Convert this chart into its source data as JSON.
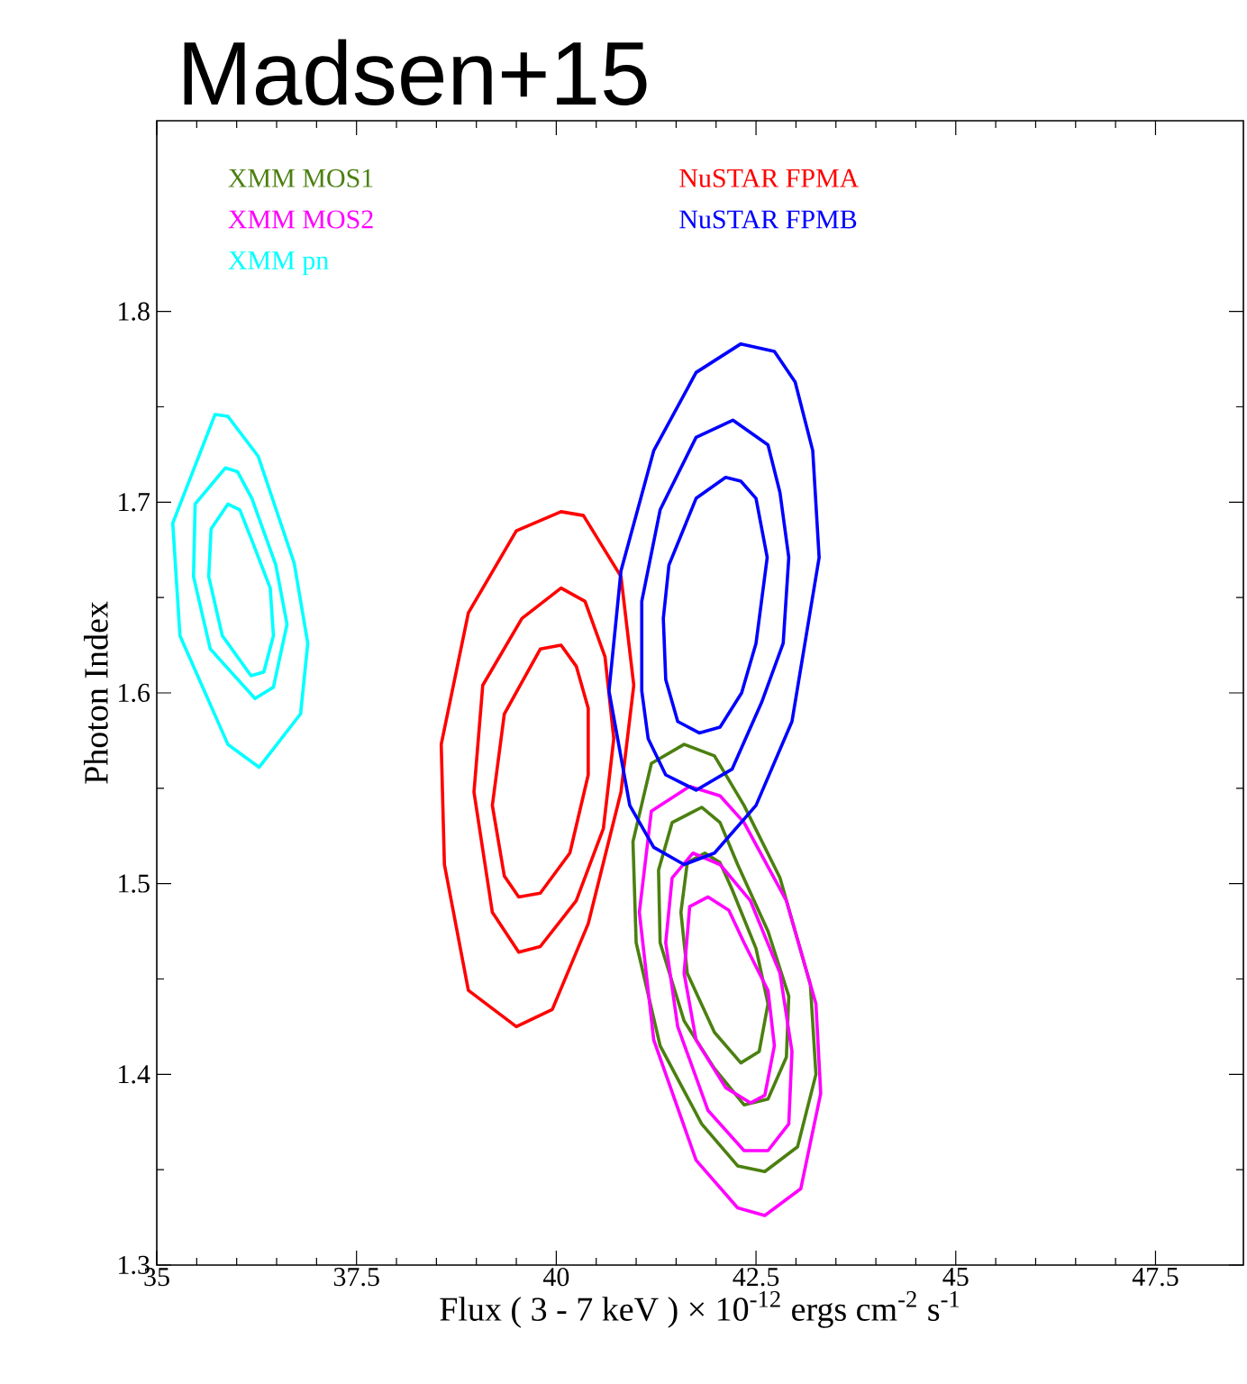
{
  "chart_data": {
    "type": "line",
    "title": "Madsen+15",
    "xlabel": "Flux ( 3 - 7 keV ) × 10$^{-12}$ ergs cm$^{-2}$ s$^{-1}$",
    "ylabel": "Photon Index",
    "xlim": [
      35,
      48.6
    ],
    "ylim": [
      1.3,
      1.9
    ],
    "xticks": [
      35,
      37.5,
      40,
      42.5,
      45,
      47.5
    ],
    "yticks": [
      1.3,
      1.4,
      1.5,
      1.6,
      1.7,
      1.8
    ],
    "line_style": "solid",
    "series": [
      {
        "name": "XMM MOS1",
        "color": "#4b8010",
        "x": [
          40.96,
          41.19,
          41.6,
          41.98,
          42.35,
          42.8,
          43.18,
          43.25,
          null,
          40.96,
          41.0,
          41.3,
          41.82,
          42.27,
          42.61,
          43.02,
          43.25
        ],
        "values": [
          1.522,
          1.563,
          1.573,
          1.567,
          1.541,
          1.503,
          1.447,
          1.4,
          null,
          1.522,
          1.469,
          1.415,
          1.374,
          1.352,
          1.349,
          1.362,
          1.4
        ]
      },
      {
        "color": "#4b8010",
        "x": [
          41.28,
          41.45,
          41.82,
          42.05,
          42.27,
          42.65,
          42.91,
          null,
          41.28,
          41.3,
          41.6,
          41.98,
          42.35,
          42.65,
          42.88,
          42.91
        ],
        "values": [
          1.507,
          1.532,
          1.54,
          1.532,
          1.51,
          1.475,
          1.441,
          null,
          1.507,
          1.469,
          1.428,
          1.403,
          1.384,
          1.387,
          1.409,
          1.441
        ]
      },
      {
        "color": "#4b8010",
        "x": [
          41.56,
          41.64,
          41.86,
          42.05,
          42.2,
          42.5,
          42.65,
          null,
          41.56,
          41.64,
          41.98,
          42.31,
          42.54,
          42.65
        ],
        "values": [
          1.485,
          1.511,
          1.516,
          1.511,
          1.497,
          1.466,
          1.437,
          null,
          1.485,
          1.453,
          1.422,
          1.406,
          1.412,
          1.437
        ]
      },
      {
        "name": "XMM MOS2",
        "color": "#ff00ff",
        "x": [
          41.04,
          41.19,
          41.67,
          42.05,
          42.35,
          42.88,
          43.25,
          43.31,
          null,
          41.04,
          41.22,
          41.75,
          42.27,
          42.61,
          43.06,
          43.31
        ],
        "values": [
          1.485,
          1.538,
          1.551,
          1.546,
          1.532,
          1.491,
          1.437,
          1.39,
          null,
          1.485,
          1.418,
          1.355,
          1.33,
          1.326,
          1.34,
          1.39
        ]
      },
      {
        "color": "#ff00ff",
        "x": [
          41.37,
          41.45,
          41.71,
          42.05,
          42.43,
          42.8,
          42.95,
          null,
          41.37,
          41.52,
          41.9,
          42.35,
          42.65,
          42.91,
          42.95
        ],
        "values": [
          1.469,
          1.503,
          1.516,
          1.51,
          1.491,
          1.453,
          1.412,
          null,
          1.469,
          1.425,
          1.381,
          1.36,
          1.36,
          1.374,
          1.412
        ]
      },
      {
        "color": "#ff00ff",
        "x": [
          41.6,
          41.67,
          41.9,
          42.16,
          42.35,
          42.65,
          42.73,
          null,
          41.6,
          41.75,
          42.12,
          42.43,
          42.61,
          42.73
        ],
        "values": [
          1.453,
          1.488,
          1.493,
          1.486,
          1.469,
          1.444,
          1.415,
          null,
          1.453,
          1.418,
          1.393,
          1.385,
          1.389,
          1.415
        ]
      },
      {
        "name": "XMM pn",
        "color": "#00ffff",
        "x": [
          35.2,
          35.73,
          35.89,
          36.27,
          36.72,
          36.89,
          null,
          35.2,
          35.29,
          35.89,
          36.28,
          36.8,
          36.89
        ],
        "values": [
          1.689,
          1.746,
          1.745,
          1.724,
          1.668,
          1.626,
          null,
          1.689,
          1.63,
          1.573,
          1.561,
          1.589,
          1.626
        ]
      },
      {
        "color": "#00ffff",
        "x": [
          35.46,
          35.48,
          35.86,
          36.01,
          36.19,
          36.49,
          36.63,
          null,
          35.46,
          35.67,
          36.23,
          36.46,
          36.63
        ],
        "values": [
          1.661,
          1.699,
          1.718,
          1.716,
          1.702,
          1.667,
          1.636,
          null,
          1.661,
          1.623,
          1.597,
          1.603,
          1.636
        ]
      },
      {
        "color": "#00ffff",
        "x": [
          35.65,
          35.68,
          35.89,
          36.04,
          36.19,
          36.42,
          36.46,
          null,
          35.65,
          35.82,
          36.18,
          36.34,
          36.46
        ],
        "values": [
          1.661,
          1.686,
          1.699,
          1.696,
          1.68,
          1.655,
          1.63,
          null,
          1.661,
          1.63,
          1.609,
          1.611,
          1.63
        ]
      },
      {
        "name": "NuSTAR FPMA",
        "color": "#ff0000",
        "x": [
          38.56,
          38.9,
          39.5,
          40.06,
          40.34,
          40.81,
          40.97,
          null,
          38.56,
          38.6,
          38.9,
          39.5,
          39.95,
          40.4,
          40.81,
          40.97
        ],
        "values": [
          1.573,
          1.642,
          1.685,
          1.695,
          1.693,
          1.661,
          1.604,
          null,
          1.573,
          1.51,
          1.444,
          1.425,
          1.434,
          1.479,
          1.548,
          1.604
        ]
      },
      {
        "color": "#ff0000",
        "x": [
          38.97,
          39.08,
          39.57,
          40.06,
          40.36,
          40.61,
          40.72,
          null,
          38.97,
          39.2,
          39.53,
          39.8,
          40.25,
          40.59,
          40.72
        ],
        "values": [
          1.548,
          1.604,
          1.639,
          1.655,
          1.648,
          1.619,
          1.576,
          null,
          1.548,
          1.485,
          1.464,
          1.467,
          1.491,
          1.529,
          1.576
        ]
      },
      {
        "color": "#ff0000",
        "x": [
          39.2,
          39.35,
          39.8,
          40.06,
          40.25,
          40.4,
          null,
          39.2,
          39.35,
          39.53,
          39.8,
          40.17,
          40.4,
          40.4
        ],
        "values": [
          1.541,
          1.589,
          1.623,
          1.625,
          1.614,
          1.592,
          null,
          1.541,
          1.504,
          1.493,
          1.495,
          1.516,
          1.557,
          1.592
        ]
      },
      {
        "name": "NuSTAR FPMB",
        "color": "#0000ff",
        "x": [
          40.66,
          40.81,
          41.22,
          41.75,
          42.31,
          42.73,
          42.99,
          43.21,
          43.29,
          null,
          40.66,
          40.92,
          41.22,
          41.6,
          41.98,
          42.5,
          42.95,
          43.29
        ],
        "values": [
          1.601,
          1.664,
          1.727,
          1.768,
          1.783,
          1.779,
          1.763,
          1.727,
          1.671,
          null,
          1.601,
          1.541,
          1.519,
          1.51,
          1.516,
          1.541,
          1.585,
          1.671
        ]
      },
      {
        "color": "#0000ff",
        "x": [
          41.07,
          41.3,
          41.75,
          42.21,
          42.65,
          42.8,
          42.91,
          null,
          41.07,
          41.07,
          41.15,
          41.37,
          41.75,
          42.2,
          42.57,
          42.84,
          42.91
        ],
        "values": [
          1.648,
          1.696,
          1.734,
          1.743,
          1.73,
          1.705,
          1.671,
          null,
          1.648,
          1.601,
          1.576,
          1.557,
          1.549,
          1.56,
          1.595,
          1.626,
          1.671
        ]
      },
      {
        "color": "#0000ff",
        "x": [
          41.34,
          41.41,
          41.75,
          42.12,
          42.31,
          42.5,
          42.64,
          null,
          41.34,
          41.37,
          41.52,
          41.79,
          42.05,
          42.32,
          42.5,
          42.64
        ],
        "values": [
          1.639,
          1.667,
          1.702,
          1.713,
          1.711,
          1.702,
          1.671,
          null,
          1.639,
          1.607,
          1.585,
          1.579,
          1.582,
          1.6,
          1.626,
          1.671
        ]
      }
    ]
  }
}
